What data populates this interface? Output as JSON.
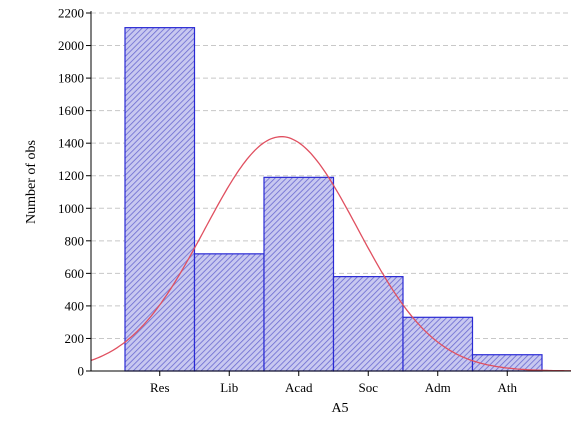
{
  "chart_data": {
    "type": "bar",
    "categories": [
      "Res",
      "Lib",
      "Acad",
      "Soc",
      "Adm",
      "Ath"
    ],
    "values": [
      2110,
      720,
      1190,
      580,
      330,
      100
    ],
    "xlabel": "A5",
    "ylabel": "Number of obs",
    "ylim": [
      0,
      2200
    ],
    "yticks": [
      0,
      200,
      400,
      600,
      800,
      1000,
      1200,
      1400,
      1600,
      1800,
      2000,
      2200
    ],
    "grid": true,
    "fitted_curve": {
      "type": "normal",
      "peak_value": 1440,
      "peak_x": 1.75,
      "sigma": 1.1
    },
    "colors": {
      "bar_fill": "#c8c8f0",
      "bar_hatch": "#6a6ad0",
      "bar_stroke": "#2a2ad4",
      "curve": "#e05060",
      "grid": "#c8c8c8",
      "axis": "#000000"
    }
  }
}
